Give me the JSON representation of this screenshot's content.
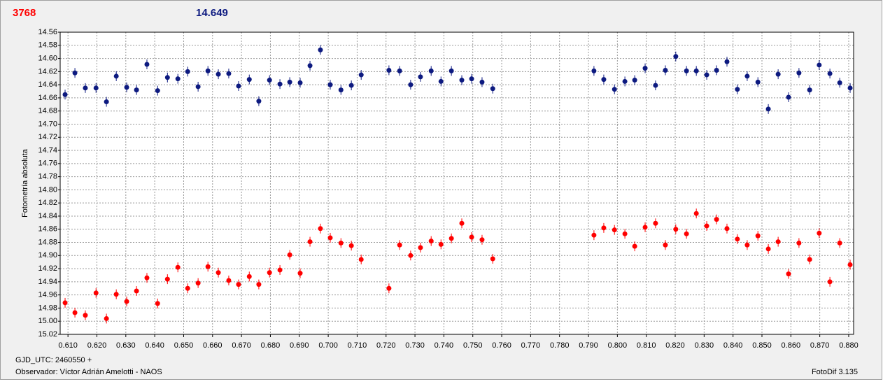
{
  "chart_data": {
    "type": "scatter",
    "header_left": "3768",
    "header_right": "14.649",
    "ylabel": "Fotometría absoluta",
    "xlabel": "GJD_UTC: 2460550 +",
    "observer": "Observador: Víctor Adrián Amelotti - NAOS",
    "software": "FotoDif 3.135",
    "grid": true,
    "xlim": [
      0.6073,
      0.8817
    ],
    "ylim": [
      15.02,
      14.56
    ],
    "xticks": [
      {
        "value": 0.61,
        "label": "0.610"
      },
      {
        "value": 0.62,
        "label": "0.620"
      },
      {
        "value": 0.63,
        "label": "0.630"
      },
      {
        "value": 0.64,
        "label": "0.640"
      },
      {
        "value": 0.65,
        "label": "0.650"
      },
      {
        "value": 0.66,
        "label": "0.660"
      },
      {
        "value": 0.67,
        "label": "0.670"
      },
      {
        "value": 0.68,
        "label": "0.680"
      },
      {
        "value": 0.69,
        "label": "0.690"
      },
      {
        "value": 0.7,
        "label": "0.700"
      },
      {
        "value": 0.71,
        "label": "0.710"
      },
      {
        "value": 0.72,
        "label": "0.720"
      },
      {
        "value": 0.73,
        "label": "0.730"
      },
      {
        "value": 0.74,
        "label": "0.740"
      },
      {
        "value": 0.75,
        "label": "0.750"
      },
      {
        "value": 0.76,
        "label": "0.760"
      },
      {
        "value": 0.77,
        "label": "0.770"
      },
      {
        "value": 0.78,
        "label": "0.780"
      },
      {
        "value": 0.79,
        "label": "0.790"
      },
      {
        "value": 0.8,
        "label": "0.800"
      },
      {
        "value": 0.81,
        "label": "0.810"
      },
      {
        "value": 0.82,
        "label": "0.820"
      },
      {
        "value": 0.83,
        "label": "0.830"
      },
      {
        "value": 0.84,
        "label": "0.840"
      },
      {
        "value": 0.85,
        "label": "0.850"
      },
      {
        "value": 0.86,
        "label": "0.860"
      },
      {
        "value": 0.87,
        "label": "0.870"
      },
      {
        "value": 0.88,
        "label": "0.880"
      }
    ],
    "yticks": [
      14.56,
      14.58,
      {
        "value": 14.6,
        "label": "14.60"
      },
      14.62,
      14.64,
      14.66,
      14.68,
      {
        "value": 14.7,
        "label": "14.70"
      },
      14.72,
      14.74,
      14.76,
      14.78,
      {
        "value": 14.8,
        "label": "14.80"
      },
      14.82,
      14.84,
      14.86,
      14.88,
      {
        "value": 14.9,
        "label": "14.90"
      },
      14.92,
      14.94,
      14.96,
      14.98,
      {
        "value": 15.0,
        "label": "15.00"
      },
      15.02
    ],
    "x": [
      0.609,
      0.6124,
      0.616,
      0.6197,
      0.6233,
      0.6267,
      0.6303,
      0.6337,
      0.6373,
      0.641,
      0.6444,
      0.648,
      0.6514,
      0.655,
      0.6584,
      0.662,
      0.6656,
      0.669,
      0.6727,
      0.676,
      0.6797,
      0.6833,
      0.6867,
      0.6903,
      0.6937,
      0.6973,
      0.7007,
      0.7044,
      0.708,
      0.7114,
      0.721,
      0.7247,
      0.7285,
      0.7319,
      0.7356,
      0.739,
      0.7426,
      0.7462,
      0.7496,
      0.7532,
      0.7569,
      0.7919,
      0.7953,
      0.799,
      0.8026,
      0.806,
      0.8096,
      0.8132,
      0.8166,
      0.8202,
      0.8239,
      0.8273,
      0.8309,
      0.8343,
      0.8379,
      0.8415,
      0.8449,
      0.8486,
      0.8522,
      0.8556,
      0.8592,
      0.8628,
      0.8665,
      0.8698,
      0.8735,
      0.8769,
      0.8805
    ],
    "series": [
      {
        "color": "#0d1a80",
        "values": [
          14.655,
          14.622,
          14.645,
          14.645,
          14.666,
          14.627,
          14.644,
          14.648,
          14.609,
          14.649,
          14.629,
          14.631,
          14.62,
          14.643,
          14.619,
          14.624,
          14.623,
          14.642,
          14.632,
          14.665,
          14.633,
          14.639,
          14.636,
          14.637,
          14.611,
          14.587,
          14.64,
          14.648,
          14.641,
          14.625,
          14.618,
          14.619,
          14.64,
          14.628,
          14.619,
          14.635,
          14.619,
          14.633,
          14.631,
          14.636,
          14.646,
          14.619,
          14.632,
          14.647,
          14.635,
          14.633,
          14.615,
          14.641,
          14.618,
          14.597,
          14.619,
          14.619,
          14.625,
          14.618,
          14.605,
          14.647,
          14.627,
          14.636,
          14.677,
          14.624,
          14.659,
          14.622,
          14.648,
          14.61,
          14.623,
          14.637,
          14.645
        ]
      },
      {
        "color": "#ff0000",
        "values": [
          14.972,
          14.987,
          14.991,
          14.957,
          14.996,
          14.959,
          14.97,
          14.954,
          14.934,
          14.973,
          14.936,
          14.918,
          14.95,
          14.942,
          14.917,
          14.926,
          14.938,
          14.944,
          14.932,
          14.944,
          14.926,
          14.922,
          14.899,
          14.927,
          14.879,
          14.859,
          14.873,
          14.881,
          14.885,
          14.906,
          14.95,
          14.884,
          14.9,
          14.888,
          14.878,
          14.883,
          14.874,
          14.851,
          14.872,
          14.876,
          14.905,
          14.869,
          14.858,
          14.861,
          14.867,
          14.886,
          14.857,
          14.851,
          14.884,
          14.86,
          14.867,
          14.836,
          14.855,
          14.845,
          14.859,
          14.875,
          14.884,
          14.87,
          14.89,
          14.879,
          14.928,
          14.881,
          14.906,
          14.866,
          14.94,
          14.881,
          14.914
        ]
      }
    ]
  }
}
